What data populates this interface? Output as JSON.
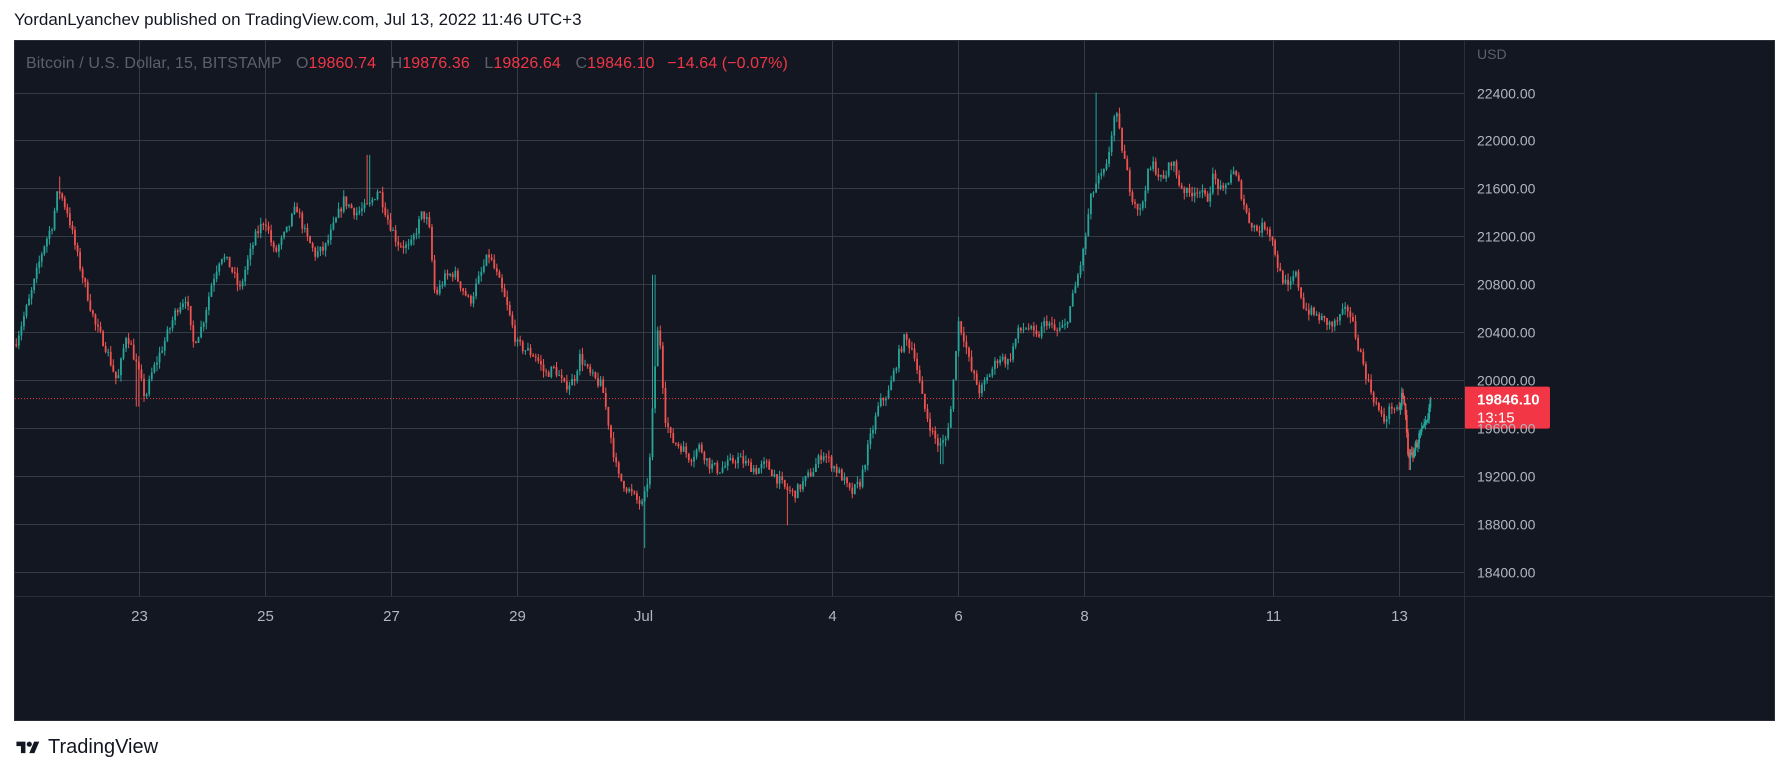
{
  "header": {
    "published": "YordanLyanchev published on TradingView.com, Jul 13, 2022 11:46 UTC+3"
  },
  "legend": {
    "symbol": "Bitcoin / U.S. Dollar, 15, BITSTAMP",
    "open_key": "O",
    "open": "19860.74",
    "high_key": "H",
    "high": "19876.36",
    "low_key": "L",
    "low": "19826.64",
    "close_key": "C",
    "close": "19846.10",
    "change": "−14.64 (−0.07%)"
  },
  "footer": {
    "brand": "TradingView"
  },
  "colors": {
    "background": "#131722",
    "grid": "#363a45",
    "up": "#26a69a",
    "down": "#ef5350",
    "price_label": "#f23645",
    "axis_text": "#b2b5be"
  },
  "chart_data": {
    "type": "candlestick",
    "symbol": "Bitcoin / U.S. Dollar",
    "interval": "15",
    "exchange": "BITSTAMP",
    "currency_label": "USD",
    "last_price": {
      "value": 19846.1,
      "label": "19846.10",
      "countdown": "13:15"
    },
    "ylim": [
      18200,
      22830
    ],
    "y_ticks": [
      18400,
      18800,
      19200,
      19600,
      20000,
      20400,
      20800,
      21200,
      21600,
      22000,
      22400
    ],
    "y_tick_labels": [
      "18400.00",
      "18800.00",
      "19200.00",
      "19600.00",
      "20000.00",
      "20400.00",
      "20800.00",
      "21200.00",
      "21600.00",
      "22000.00",
      "22400.00"
    ],
    "x_range_days": [
      0.0,
      23.06
    ],
    "x_ticks": [
      {
        "day": 2.0,
        "label": "23"
      },
      {
        "day": 4.0,
        "label": "25"
      },
      {
        "day": 6.0,
        "label": "27"
      },
      {
        "day": 8.0,
        "label": "29"
      },
      {
        "day": 10.0,
        "label": "Jul"
      },
      {
        "day": 13.0,
        "label": "4"
      },
      {
        "day": 15.0,
        "label": "6"
      },
      {
        "day": 17.0,
        "label": "8"
      },
      {
        "day": 20.0,
        "label": "11"
      },
      {
        "day": 22.0,
        "label": "13"
      }
    ],
    "close_path": [
      [
        0.0,
        20300
      ],
      [
        0.25,
        20700
      ],
      [
        0.45,
        21100
      ],
      [
        0.6,
        21300
      ],
      [
        0.7,
        21600
      ],
      [
        0.85,
        21400
      ],
      [
        1.0,
        21050
      ],
      [
        1.15,
        20750
      ],
      [
        1.3,
        20450
      ],
      [
        1.45,
        20300
      ],
      [
        1.65,
        19980
      ],
      [
        1.8,
        20400
      ],
      [
        1.95,
        20150
      ],
      [
        2.1,
        19850
      ],
      [
        2.2,
        20050
      ],
      [
        2.35,
        20250
      ],
      [
        2.5,
        20450
      ],
      [
        2.6,
        20600
      ],
      [
        2.75,
        20700
      ],
      [
        2.85,
        20300
      ],
      [
        3.0,
        20450
      ],
      [
        3.15,
        20800
      ],
      [
        3.3,
        21050
      ],
      [
        3.45,
        20950
      ],
      [
        3.6,
        20750
      ],
      [
        3.7,
        20950
      ],
      [
        3.85,
        21200
      ],
      [
        4.0,
        21350
      ],
      [
        4.15,
        21050
      ],
      [
        4.35,
        21250
      ],
      [
        4.5,
        21450
      ],
      [
        4.65,
        21200
      ],
      [
        4.8,
        21050
      ],
      [
        4.95,
        21100
      ],
      [
        5.1,
        21300
      ],
      [
        5.25,
        21500
      ],
      [
        5.45,
        21400
      ],
      [
        5.65,
        21450
      ],
      [
        5.8,
        21600
      ],
      [
        5.95,
        21350
      ],
      [
        6.1,
        21150
      ],
      [
        6.3,
        21100
      ],
      [
        6.5,
        21400
      ],
      [
        6.6,
        21300
      ],
      [
        6.7,
        20700
      ],
      [
        6.85,
        20850
      ],
      [
        7.0,
        20900
      ],
      [
        7.15,
        20750
      ],
      [
        7.25,
        20650
      ],
      [
        7.4,
        20850
      ],
      [
        7.55,
        21050
      ],
      [
        7.7,
        20850
      ],
      [
        7.85,
        20600
      ],
      [
        8.0,
        20300
      ],
      [
        8.15,
        20250
      ],
      [
        8.3,
        20200
      ],
      [
        8.45,
        20050
      ],
      [
        8.6,
        20100
      ],
      [
        8.75,
        19950
      ],
      [
        8.9,
        20000
      ],
      [
        9.0,
        20200
      ],
      [
        9.15,
        20050
      ],
      [
        9.35,
        19950
      ],
      [
        9.5,
        19500
      ],
      [
        9.6,
        19200
      ],
      [
        9.75,
        19100
      ],
      [
        9.9,
        19000
      ],
      [
        10.0,
        18950
      ],
      [
        10.1,
        19250
      ],
      [
        10.2,
        20200
      ],
      [
        10.25,
        20500
      ],
      [
        10.35,
        19700
      ],
      [
        10.45,
        19500
      ],
      [
        10.6,
        19450
      ],
      [
        10.75,
        19350
      ],
      [
        10.9,
        19450
      ],
      [
        11.05,
        19300
      ],
      [
        11.2,
        19250
      ],
      [
        11.35,
        19300
      ],
      [
        11.5,
        19350
      ],
      [
        11.65,
        19300
      ],
      [
        11.8,
        19250
      ],
      [
        11.95,
        19300
      ],
      [
        12.1,
        19200
      ],
      [
        12.25,
        19100
      ],
      [
        12.4,
        19050
      ],
      [
        12.55,
        19150
      ],
      [
        12.7,
        19250
      ],
      [
        12.85,
        19400
      ],
      [
        13.0,
        19300
      ],
      [
        13.15,
        19200
      ],
      [
        13.3,
        19050
      ],
      [
        13.45,
        19150
      ],
      [
        13.6,
        19500
      ],
      [
        13.75,
        19800
      ],
      [
        13.9,
        19900
      ],
      [
        14.05,
        20200
      ],
      [
        14.15,
        20350
      ],
      [
        14.3,
        20250
      ],
      [
        14.45,
        19800
      ],
      [
        14.6,
        19550
      ],
      [
        14.7,
        19450
      ],
      [
        14.8,
        19500
      ],
      [
        14.9,
        19800
      ],
      [
        15.0,
        20500
      ],
      [
        15.1,
        20350
      ],
      [
        15.2,
        20100
      ],
      [
        15.35,
        19900
      ],
      [
        15.5,
        20050
      ],
      [
        15.65,
        20200
      ],
      [
        15.8,
        20150
      ],
      [
        15.95,
        20400
      ],
      [
        16.1,
        20450
      ],
      [
        16.25,
        20350
      ],
      [
        16.4,
        20500
      ],
      [
        16.55,
        20400
      ],
      [
        16.7,
        20450
      ],
      [
        16.85,
        20750
      ],
      [
        17.0,
        21100
      ],
      [
        17.1,
        21500
      ],
      [
        17.2,
        21650
      ],
      [
        17.35,
        21750
      ],
      [
        17.45,
        22100
      ],
      [
        17.5,
        22250
      ],
      [
        17.6,
        21950
      ],
      [
        17.75,
        21550
      ],
      [
        17.9,
        21400
      ],
      [
        18.0,
        21700
      ],
      [
        18.1,
        21800
      ],
      [
        18.25,
        21650
      ],
      [
        18.4,
        21850
      ],
      [
        18.5,
        21650
      ],
      [
        18.65,
        21550
      ],
      [
        18.8,
        21600
      ],
      [
        18.95,
        21500
      ],
      [
        19.05,
        21700
      ],
      [
        19.2,
        21550
      ],
      [
        19.35,
        21750
      ],
      [
        19.45,
        21650
      ],
      [
        19.6,
        21350
      ],
      [
        19.75,
        21250
      ],
      [
        19.9,
        21300
      ],
      [
        20.0,
        21150
      ],
      [
        20.1,
        20900
      ],
      [
        20.25,
        20750
      ],
      [
        20.35,
        20900
      ],
      [
        20.5,
        20600
      ],
      [
        20.65,
        20550
      ],
      [
        20.8,
        20500
      ],
      [
        20.95,
        20450
      ],
      [
        21.1,
        20550
      ],
      [
        21.2,
        20600
      ],
      [
        21.35,
        20300
      ],
      [
        21.5,
        20000
      ],
      [
        21.6,
        19850
      ],
      [
        21.75,
        19650
      ],
      [
        21.9,
        19800
      ],
      [
        22.0,
        19700
      ],
      [
        22.1,
        19900
      ],
      [
        22.2,
        19750
      ],
      [
        22.3,
        19400
      ],
      [
        22.4,
        19350
      ],
      [
        22.55,
        19450
      ],
      [
        22.7,
        19550
      ],
      [
        22.85,
        19600
      ],
      [
        22.95,
        19650
      ],
      [
        23.06,
        19846
      ]
    ],
    "spikes": [
      {
        "day": 0.72,
        "high": 21700
      },
      {
        "day": 5.65,
        "high": 21880
      },
      {
        "day": 10.18,
        "high": 20880
      },
      {
        "day": 10.03,
        "low": 18600
      },
      {
        "day": 17.2,
        "high": 22400
      },
      {
        "day": 12.3,
        "low": 18790
      },
      {
        "day": 1.98,
        "low": 19780
      },
      {
        "day": 14.75,
        "low": 19300
      },
      {
        "day": 22.35,
        "low": 19250
      }
    ]
  },
  "axis": {
    "currency": "USD"
  }
}
